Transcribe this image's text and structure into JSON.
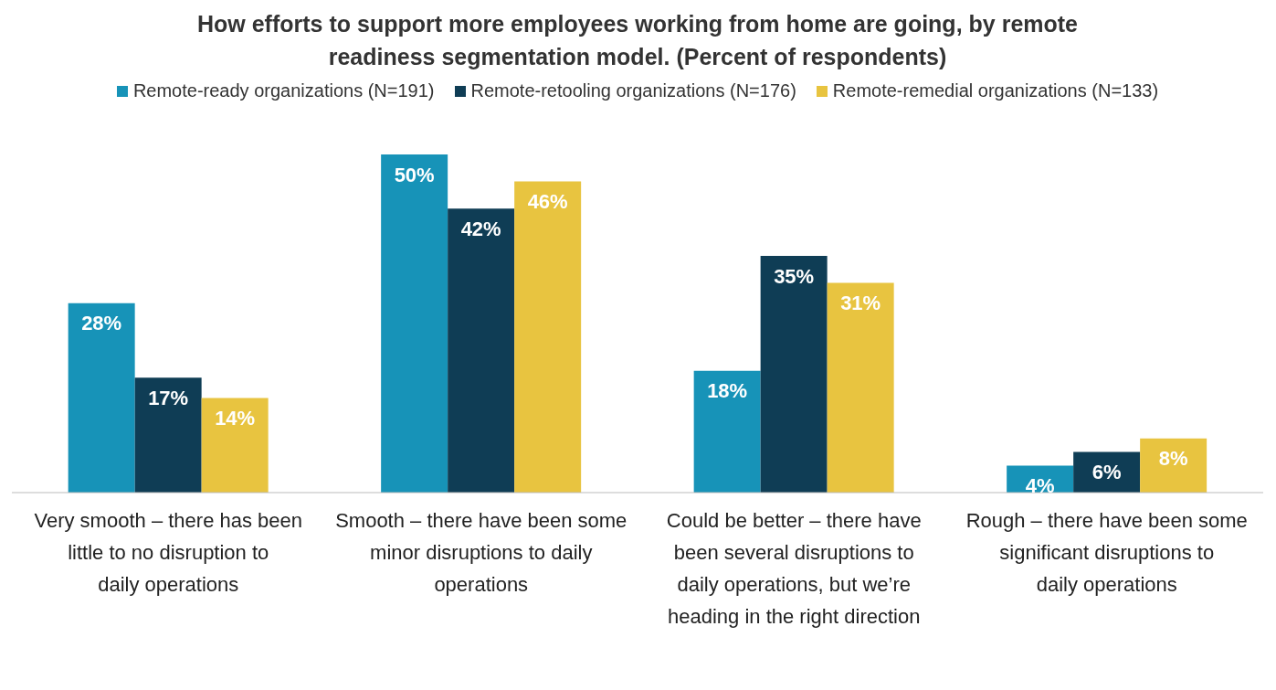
{
  "chart_data": {
    "type": "bar",
    "title": "How efforts to support more employees working from home are going, by remote readiness segmentation model. (Percent of respondents)",
    "categories": [
      "Very smooth – there has been little to no disruption to daily operations",
      "Smooth – there have been some minor disruptions to daily operations",
      "Could be better – there have been several disruptions to daily operations, but we’re heading in the right direction",
      "Rough – there have been some significant disruptions to daily operations"
    ],
    "series": [
      {
        "name": "Remote-ready organizations (N=191)",
        "color": "#1793b8",
        "values": [
          28,
          50,
          18,
          4
        ],
        "value_labels": [
          "28%",
          "50%",
          "18%",
          "4%"
        ]
      },
      {
        "name": "Remote-retooling organizations (N=176)",
        "color": "#0f3d55",
        "values": [
          17,
          42,
          35,
          6
        ],
        "value_labels": [
          "17%",
          "42%",
          "35%",
          "6%"
        ]
      },
      {
        "name": "Remote-remedial organizations (N=133)",
        "color": "#e8c440",
        "values": [
          14,
          46,
          31,
          8
        ],
        "value_labels": [
          "14%",
          "46%",
          "31%",
          "8%"
        ]
      }
    ],
    "legend": "top",
    "grid": false
  }
}
